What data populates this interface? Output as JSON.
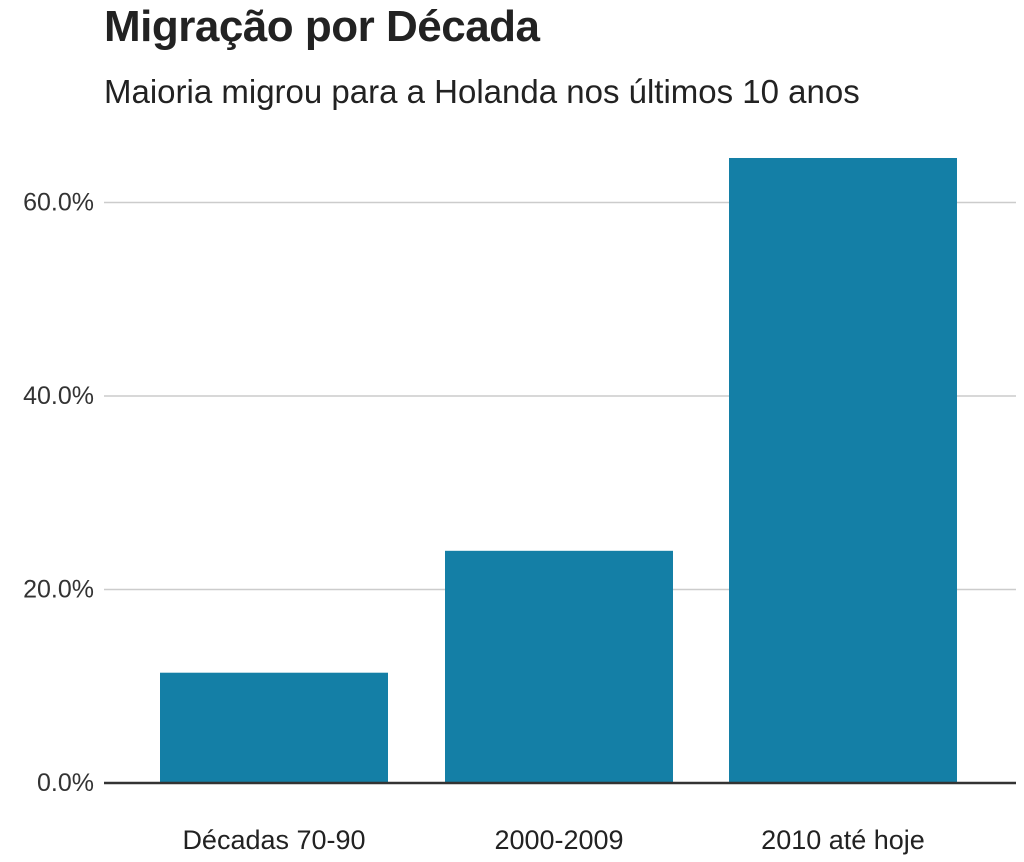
{
  "chart_data": {
    "type": "bar",
    "title": "Migração por Década",
    "subtitle": "Maioria migrou para a Holanda nos últimos 10 anos",
    "categories": [
      "Décadas 70-90",
      "2000-2009",
      "2010 até hoje"
    ],
    "values": [
      11.4,
      24.0,
      64.6
    ],
    "unit": "%",
    "ylim": [
      0,
      67.5
    ],
    "yticks": [
      0,
      20,
      40,
      60
    ],
    "ytick_labels": [
      "0.0%",
      "20.0%",
      "40.0%",
      "60.0%"
    ],
    "xlabel": "",
    "ylabel": "",
    "grid": "horizontal",
    "colors": {
      "bar": "#147fa6",
      "grid": "#cccccc",
      "baseline": "#333333"
    }
  }
}
